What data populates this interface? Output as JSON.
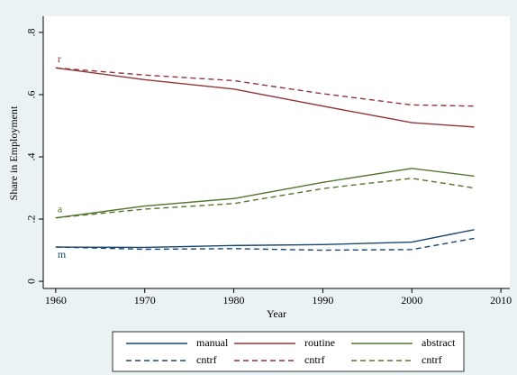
{
  "chart_data": {
    "type": "line",
    "x_label": "Year",
    "y_label": "Share in Employment",
    "x": [
      1960,
      1970,
      1980,
      1990,
      2000,
      2007
    ],
    "series": [
      {
        "name": "manual",
        "color": "#1a476f",
        "dash": false,
        "values": [
          0.11,
          0.109,
          0.115,
          0.118,
          0.126,
          0.166
        ]
      },
      {
        "name": "routine",
        "color": "#90353b",
        "dash": false,
        "values": [
          0.686,
          0.648,
          0.618,
          0.563,
          0.51,
          0.496
        ]
      },
      {
        "name": "abstract",
        "color": "#55752f",
        "dash": false,
        "values": [
          0.204,
          0.242,
          0.266,
          0.318,
          0.363,
          0.338
        ]
      },
      {
        "name": "cntrf",
        "color": "#1a476f",
        "dash": true,
        "values": [
          0.11,
          0.103,
          0.105,
          0.1,
          0.102,
          0.138
        ]
      },
      {
        "name": "cntrf",
        "color": "#90353b",
        "dash": true,
        "values": [
          0.686,
          0.663,
          0.645,
          0.603,
          0.567,
          0.563
        ]
      },
      {
        "name": "cntrf",
        "color": "#55752f",
        "dash": true,
        "values": [
          0.204,
          0.232,
          0.25,
          0.298,
          0.331,
          0.3
        ]
      }
    ],
    "annotations": [
      "m",
      "r",
      "a"
    ],
    "xlim": [
      1958.6,
      2011
    ],
    "xticks": [
      1960,
      1970,
      1980,
      1990,
      2000,
      2010
    ],
    "ylim": [
      -0.023,
      0.852
    ],
    "yticks": [
      0,
      {
        "value": 0.2,
        "label": ".2"
      },
      {
        "value": 0.4,
        "label": ".4"
      },
      {
        "value": 0.6,
        "label": ".6"
      },
      {
        "value": 0.8,
        "label": ".8"
      }
    ],
    "grid": false,
    "legend": "bottom"
  }
}
